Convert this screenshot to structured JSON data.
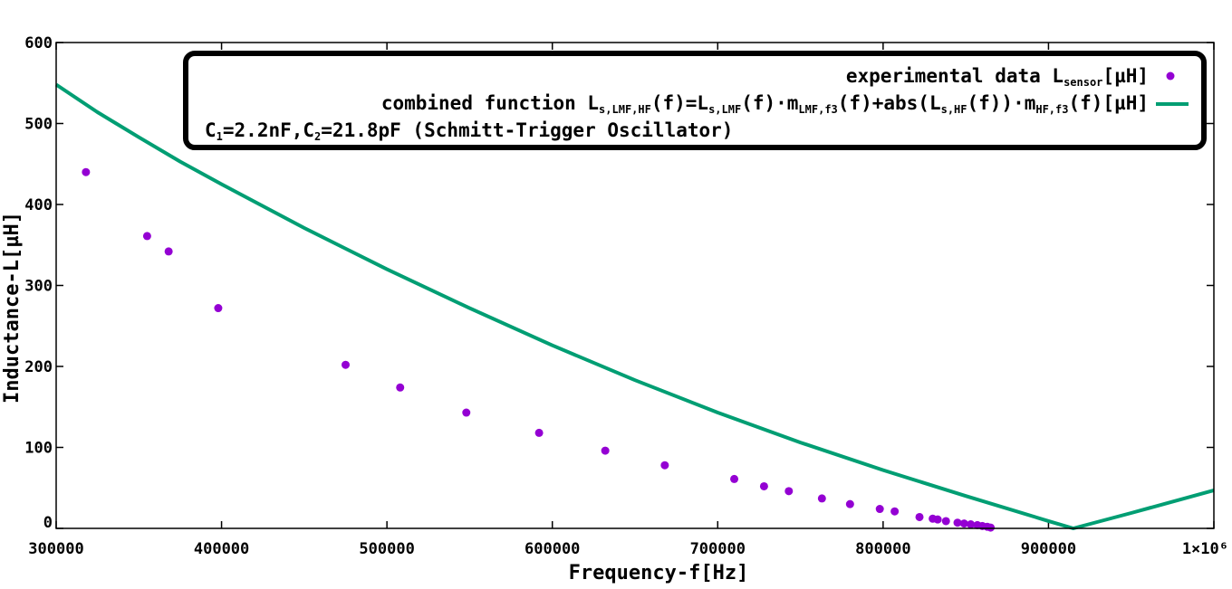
{
  "chart_data": {
    "type": "scatter",
    "xlabel": "Frequency-f[Hz]",
    "ylabel": "Inductance-L[µH]",
    "xlim": [
      300000,
      1000000
    ],
    "ylim": [
      0,
      600
    ],
    "grid": false,
    "legend_position": "top-right",
    "x_ticks": [
      {
        "value": 300000,
        "label": "300000"
      },
      {
        "value": 400000,
        "label": "400000"
      },
      {
        "value": 500000,
        "label": "500000"
      },
      {
        "value": 600000,
        "label": "600000"
      },
      {
        "value": 700000,
        "label": "700000"
      },
      {
        "value": 800000,
        "label": "800000"
      },
      {
        "value": 900000,
        "label": "900000"
      },
      {
        "value": 1000000,
        "label": "1×10⁶"
      }
    ],
    "y_ticks": [
      {
        "value": 0,
        "label": "0"
      },
      {
        "value": 100,
        "label": "100"
      },
      {
        "value": 200,
        "label": "200"
      },
      {
        "value": 300,
        "label": "300"
      },
      {
        "value": 400,
        "label": "400"
      },
      {
        "value": 500,
        "label": "500"
      },
      {
        "value": 600,
        "label": "600"
      }
    ],
    "series": [
      {
        "kind": "scatter",
        "color": "#9400d3",
        "legend": {
          "prefix": "experimental data ",
          "symbol": "L",
          "sub": "sensor",
          "suffix": "[µH]"
        },
        "points": [
          [
            318000,
            440
          ],
          [
            355000,
            361
          ],
          [
            368000,
            342
          ],
          [
            398000,
            272
          ],
          [
            475000,
            202
          ],
          [
            508000,
            174
          ],
          [
            548000,
            143
          ],
          [
            592000,
            118
          ],
          [
            632000,
            96
          ],
          [
            668000,
            78
          ],
          [
            710000,
            61
          ],
          [
            728000,
            52
          ],
          [
            743000,
            46
          ],
          [
            763000,
            37
          ],
          [
            780000,
            30
          ],
          [
            798000,
            24
          ],
          [
            807000,
            21
          ],
          [
            822000,
            14
          ],
          [
            830000,
            12
          ],
          [
            833000,
            11
          ],
          [
            838000,
            9
          ],
          [
            845000,
            7
          ],
          [
            849000,
            6
          ],
          [
            853000,
            5
          ],
          [
            857000,
            4
          ],
          [
            860000,
            3
          ],
          [
            863000,
            2
          ],
          [
            865000,
            1
          ]
        ]
      },
      {
        "kind": "line",
        "color": "#009e73",
        "legend": {
          "parts": [
            {
              "t": "combined function "
            },
            {
              "t": "L"
            },
            {
              "t": "s,LMF,HF",
              "sub": true
            },
            {
              "t": "(f)="
            },
            {
              "t": "L"
            },
            {
              "t": "s,LMF",
              "sub": true
            },
            {
              "t": "(f)·m"
            },
            {
              "t": "LMF,f3",
              "sub": true
            },
            {
              "t": "(f)+abs("
            },
            {
              "t": "L"
            },
            {
              "t": "s,HF",
              "sub": true
            },
            {
              "t": "(f))·m"
            },
            {
              "t": "HF,f3",
              "sub": true
            },
            {
              "t": "(f)[µH]"
            }
          ]
        },
        "points": [
          [
            300000,
            548
          ],
          [
            325000,
            514
          ],
          [
            350000,
            483
          ],
          [
            375000,
            453
          ],
          [
            400000,
            425
          ],
          [
            450000,
            371
          ],
          [
            500000,
            320
          ],
          [
            550000,
            272
          ],
          [
            600000,
            226
          ],
          [
            650000,
            183
          ],
          [
            700000,
            143
          ],
          [
            750000,
            106
          ],
          [
            800000,
            72
          ],
          [
            850000,
            40
          ],
          [
            900000,
            9
          ],
          [
            915000,
            0
          ],
          [
            950000,
            19
          ],
          [
            1000000,
            47
          ]
        ]
      }
    ],
    "legend_note": {
      "parts": [
        {
          "t": "C"
        },
        {
          "t": "1",
          "sub": true
        },
        {
          "t": "=2.2nF,C"
        },
        {
          "t": "2",
          "sub": true
        },
        {
          "t": "=21.8pF (Schmitt-Trigger Oscillator)"
        }
      ]
    }
  }
}
